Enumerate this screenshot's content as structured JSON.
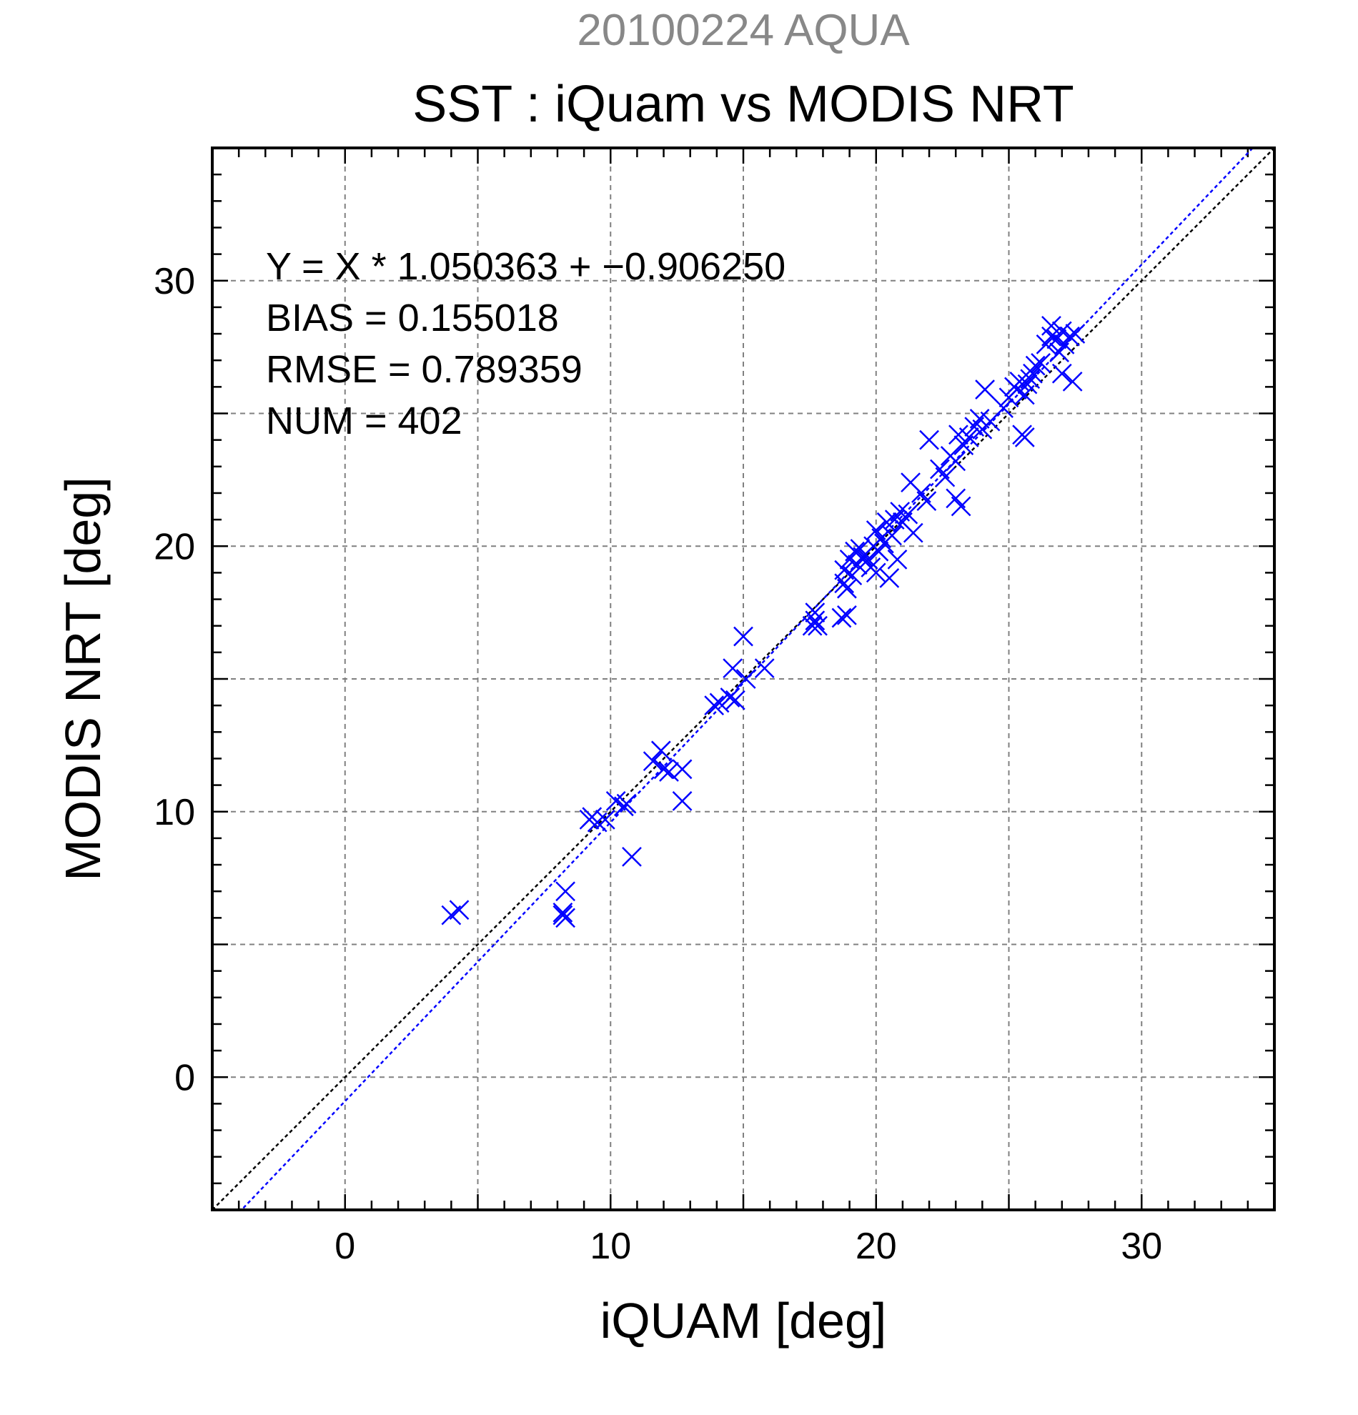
{
  "chart_data": {
    "type": "scatter",
    "suptitle": "20100224 AQUA",
    "title": "SST : iQuam vs MODIS NRT",
    "xlabel": "iQUAM [deg]",
    "ylabel": "MODIS NRT [deg]",
    "xlim": [
      -5,
      35
    ],
    "ylim": [
      -5,
      35
    ],
    "xticks": [
      0,
      10,
      20,
      30
    ],
    "yticks": [
      0,
      10,
      20,
      30
    ],
    "grid": true,
    "colors": {
      "points": "#0000ff",
      "fit_line": "#0000ff",
      "identity_line": "#000000",
      "grid": "#808080",
      "suptitle": "#888888"
    },
    "stats": [
      "Y = X * 1.050363 + −0.906250",
      "BIAS = 0.155018",
      "RMSE = 0.789359",
      "NUM = 402"
    ],
    "fit": {
      "slope": 1.050363,
      "intercept": -0.90625
    },
    "series": [
      {
        "marker": "x",
        "points": [
          [
            4.0,
            6.1
          ],
          [
            4.3,
            6.3
          ],
          [
            8.2,
            6.1
          ],
          [
            8.2,
            6.2
          ],
          [
            8.3,
            6.0
          ],
          [
            8.3,
            7.0
          ],
          [
            9.2,
            9.7
          ],
          [
            9.3,
            9.8
          ],
          [
            9.5,
            9.6
          ],
          [
            9.8,
            9.7
          ],
          [
            10.2,
            10.4
          ],
          [
            10.5,
            10.2
          ],
          [
            10.6,
            10.3
          ],
          [
            10.8,
            8.3
          ],
          [
            11.6,
            11.9
          ],
          [
            11.9,
            12.3
          ],
          [
            12.0,
            11.6
          ],
          [
            12.2,
            11.5
          ],
          [
            12.7,
            11.6
          ],
          [
            12.7,
            10.4
          ],
          [
            13.9,
            14.0
          ],
          [
            14.1,
            14.1
          ],
          [
            14.5,
            14.3
          ],
          [
            14.6,
            15.4
          ],
          [
            14.7,
            14.2
          ],
          [
            15.0,
            16.6
          ],
          [
            15.1,
            15.0
          ],
          [
            15.8,
            15.4
          ],
          [
            17.6,
            17.0
          ],
          [
            17.7,
            17.2
          ],
          [
            17.7,
            17.5
          ],
          [
            17.8,
            17.0
          ],
          [
            18.7,
            17.3
          ],
          [
            18.8,
            18.6
          ],
          [
            18.8,
            19.1
          ],
          [
            18.9,
            17.4
          ],
          [
            18.9,
            18.4
          ],
          [
            19.0,
            19.5
          ],
          [
            19.1,
            18.9
          ],
          [
            19.2,
            19.8
          ],
          [
            19.3,
            19.3
          ],
          [
            19.4,
            19.9
          ],
          [
            19.5,
            19.6
          ],
          [
            19.7,
            19.5
          ],
          [
            19.8,
            19.2
          ],
          [
            19.9,
            20.0
          ],
          [
            20.0,
            20.6
          ],
          [
            20.0,
            19.0
          ],
          [
            20.1,
            19.8
          ],
          [
            20.2,
            20.3
          ],
          [
            20.3,
            20.1
          ],
          [
            20.4,
            20.9
          ],
          [
            20.5,
            18.8
          ],
          [
            20.6,
            20.4
          ],
          [
            20.7,
            21.0
          ],
          [
            20.8,
            19.5
          ],
          [
            20.9,
            21.3
          ],
          [
            21.0,
            20.9
          ],
          [
            21.2,
            21.2
          ],
          [
            21.3,
            22.4
          ],
          [
            21.4,
            20.5
          ],
          [
            21.7,
            22.0
          ],
          [
            21.9,
            21.7
          ],
          [
            22.0,
            24.0
          ],
          [
            22.4,
            22.9
          ],
          [
            22.6,
            22.6
          ],
          [
            22.8,
            23.4
          ],
          [
            23.0,
            23.2
          ],
          [
            23.1,
            24.2
          ],
          [
            23.2,
            21.5
          ],
          [
            23.0,
            21.8
          ],
          [
            23.3,
            23.8
          ],
          [
            23.5,
            24.1
          ],
          [
            23.7,
            24.5
          ],
          [
            23.9,
            24.8
          ],
          [
            24.0,
            24.4
          ],
          [
            24.1,
            25.9
          ],
          [
            24.3,
            24.7
          ],
          [
            24.8,
            25.2
          ],
          [
            25.0,
            25.6
          ],
          [
            25.2,
            26.0
          ],
          [
            25.3,
            25.9
          ],
          [
            25.4,
            26.2
          ],
          [
            25.5,
            24.2
          ],
          [
            25.6,
            25.7
          ],
          [
            25.6,
            24.1
          ],
          [
            25.7,
            26.1
          ],
          [
            25.8,
            26.3
          ],
          [
            25.9,
            26.5
          ],
          [
            26.0,
            26.8
          ],
          [
            26.2,
            26.9
          ],
          [
            26.4,
            27.6
          ],
          [
            26.6,
            27.9
          ],
          [
            26.6,
            28.3
          ],
          [
            26.8,
            27.8
          ],
          [
            26.9,
            27.3
          ],
          [
            27.0,
            28.1
          ],
          [
            27.0,
            26.5
          ],
          [
            27.1,
            27.6
          ],
          [
            27.3,
            27.9
          ],
          [
            27.4,
            26.2
          ],
          [
            27.5,
            28.0
          ]
        ]
      }
    ]
  }
}
